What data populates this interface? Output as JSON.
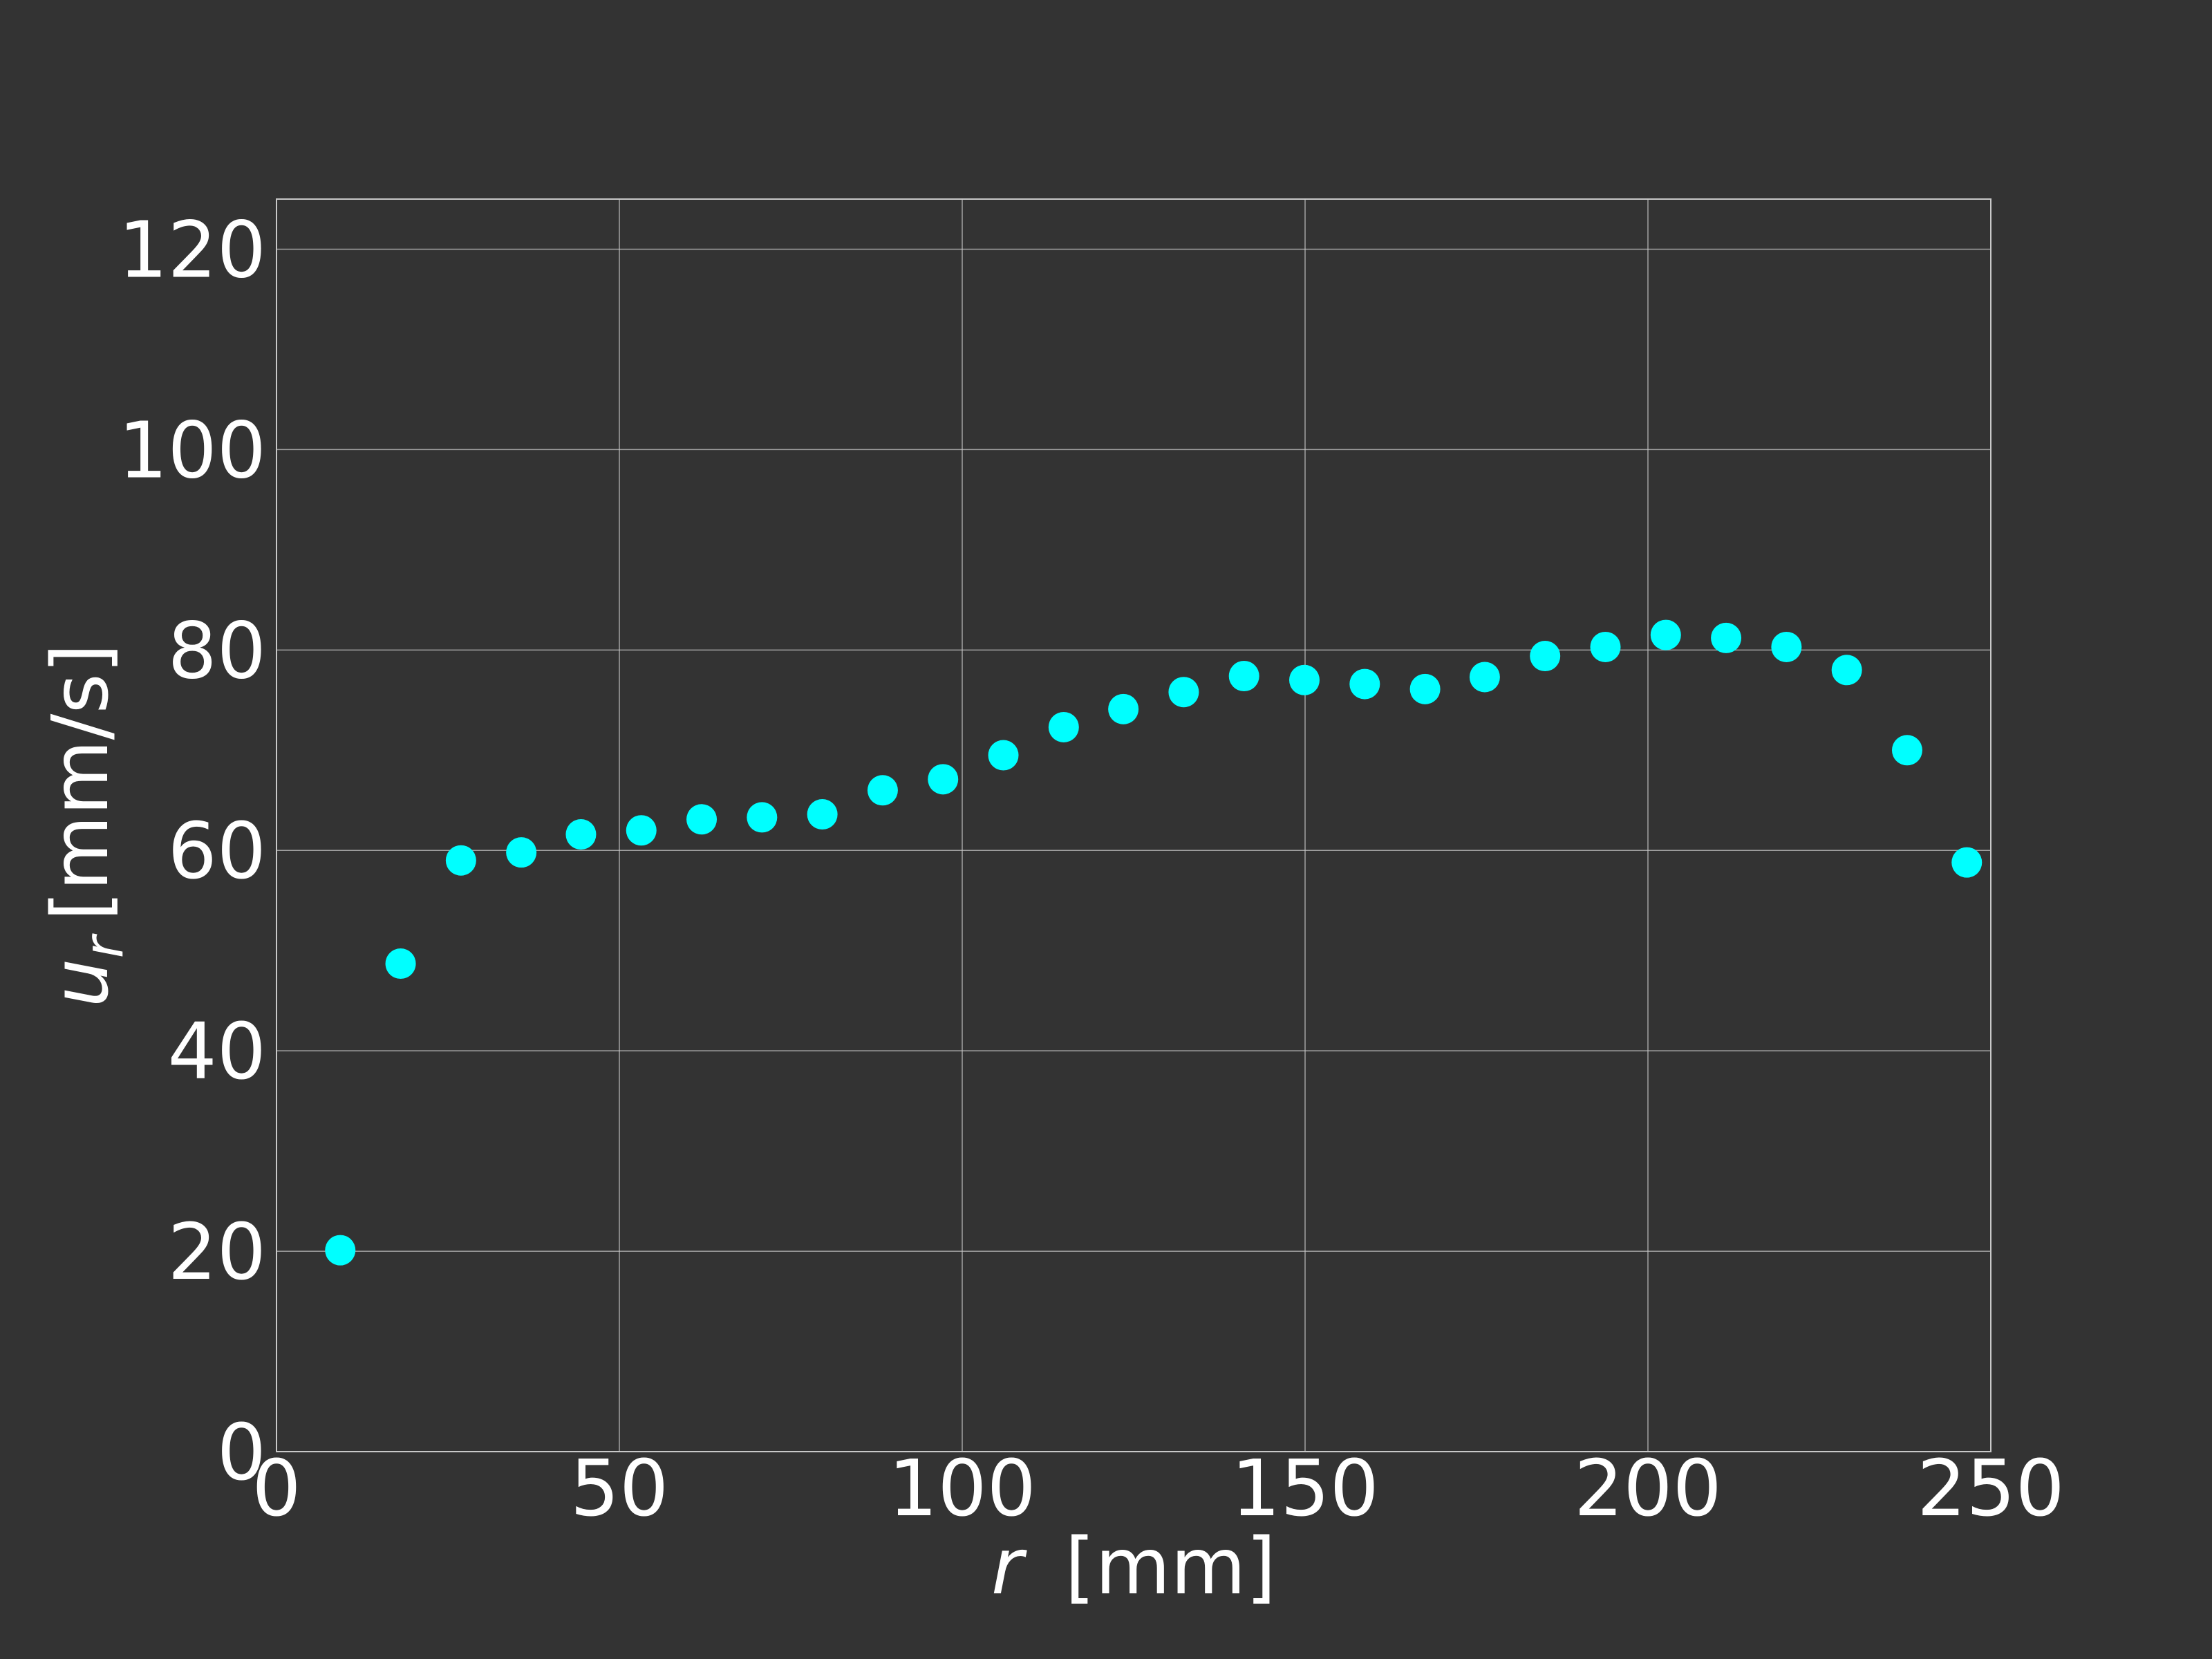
{
  "chart_data": {
    "type": "scatter",
    "title": "",
    "xlabel_var": "r",
    "xlabel_unit": "[mm]",
    "ylabel_var": "u",
    "ylabel_sub": "r",
    "ylabel_unit": "[mm/s]",
    "xlim": [
      0,
      250
    ],
    "ylim": [
      0,
      125
    ],
    "xticks": [
      0,
      50,
      100,
      150,
      200,
      250
    ],
    "yticks": [
      0,
      20,
      40,
      60,
      80,
      100,
      120
    ],
    "grid": true,
    "background_color": "#333333",
    "marker_color": "#00ffff",
    "series": [
      {
        "x": [
          9.3,
          18.1,
          26.9,
          35.7,
          44.4,
          53.2,
          62.0,
          70.8,
          79.6,
          88.4,
          97.2,
          106.0,
          114.8,
          123.5,
          132.3,
          141.1,
          149.9,
          158.7,
          167.5,
          176.2,
          185.0,
          193.8,
          202.6,
          211.4,
          220.2,
          229.0,
          237.8,
          246.5
        ],
        "y": [
          20.1,
          48.7,
          59.0,
          59.8,
          61.6,
          62.0,
          63.1,
          63.3,
          63.6,
          66.0,
          67.1,
          69.5,
          72.3,
          74.1,
          75.8,
          77.4,
          77.0,
          76.6,
          76.1,
          77.3,
          79.4,
          80.3,
          81.5,
          81.2,
          80.3,
          78.0,
          70.0,
          58.8
        ]
      }
    ]
  }
}
